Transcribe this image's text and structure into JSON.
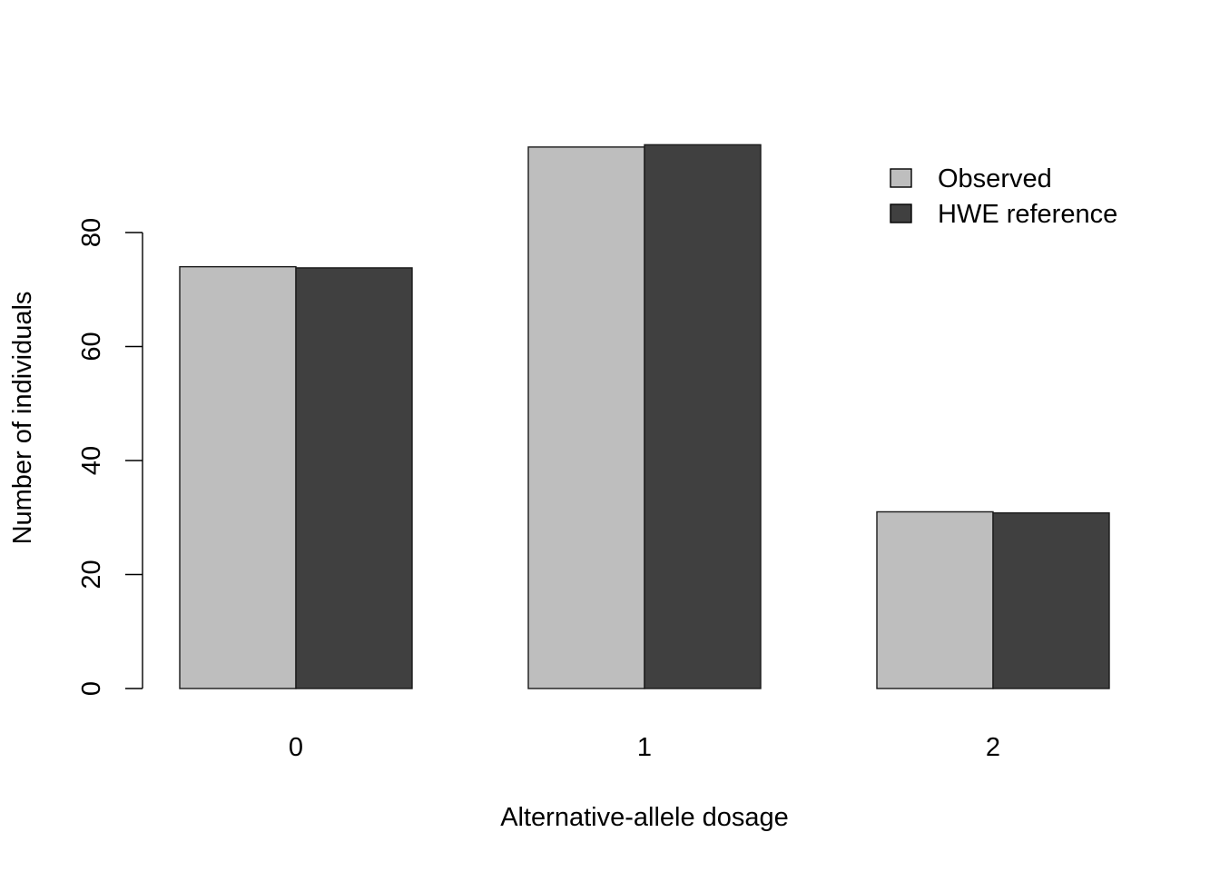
{
  "chart_data": {
    "type": "bar",
    "grouped": true,
    "title": "",
    "xlabel": "Alternative-allele dosage",
    "ylabel": "Number of individuals",
    "categories": [
      "0",
      "1",
      "2"
    ],
    "series": [
      {
        "name": "Observed",
        "values": [
          74,
          95,
          31
        ],
        "color": "#bebebe"
      },
      {
        "name": "HWE reference",
        "values": [
          73.8,
          95.4,
          30.8
        ],
        "color": "#404040"
      }
    ],
    "ylim": [
      0,
      100
    ],
    "yticks": [
      0,
      20,
      40,
      60,
      80
    ],
    "grid": false,
    "legend_position": "top-right"
  }
}
